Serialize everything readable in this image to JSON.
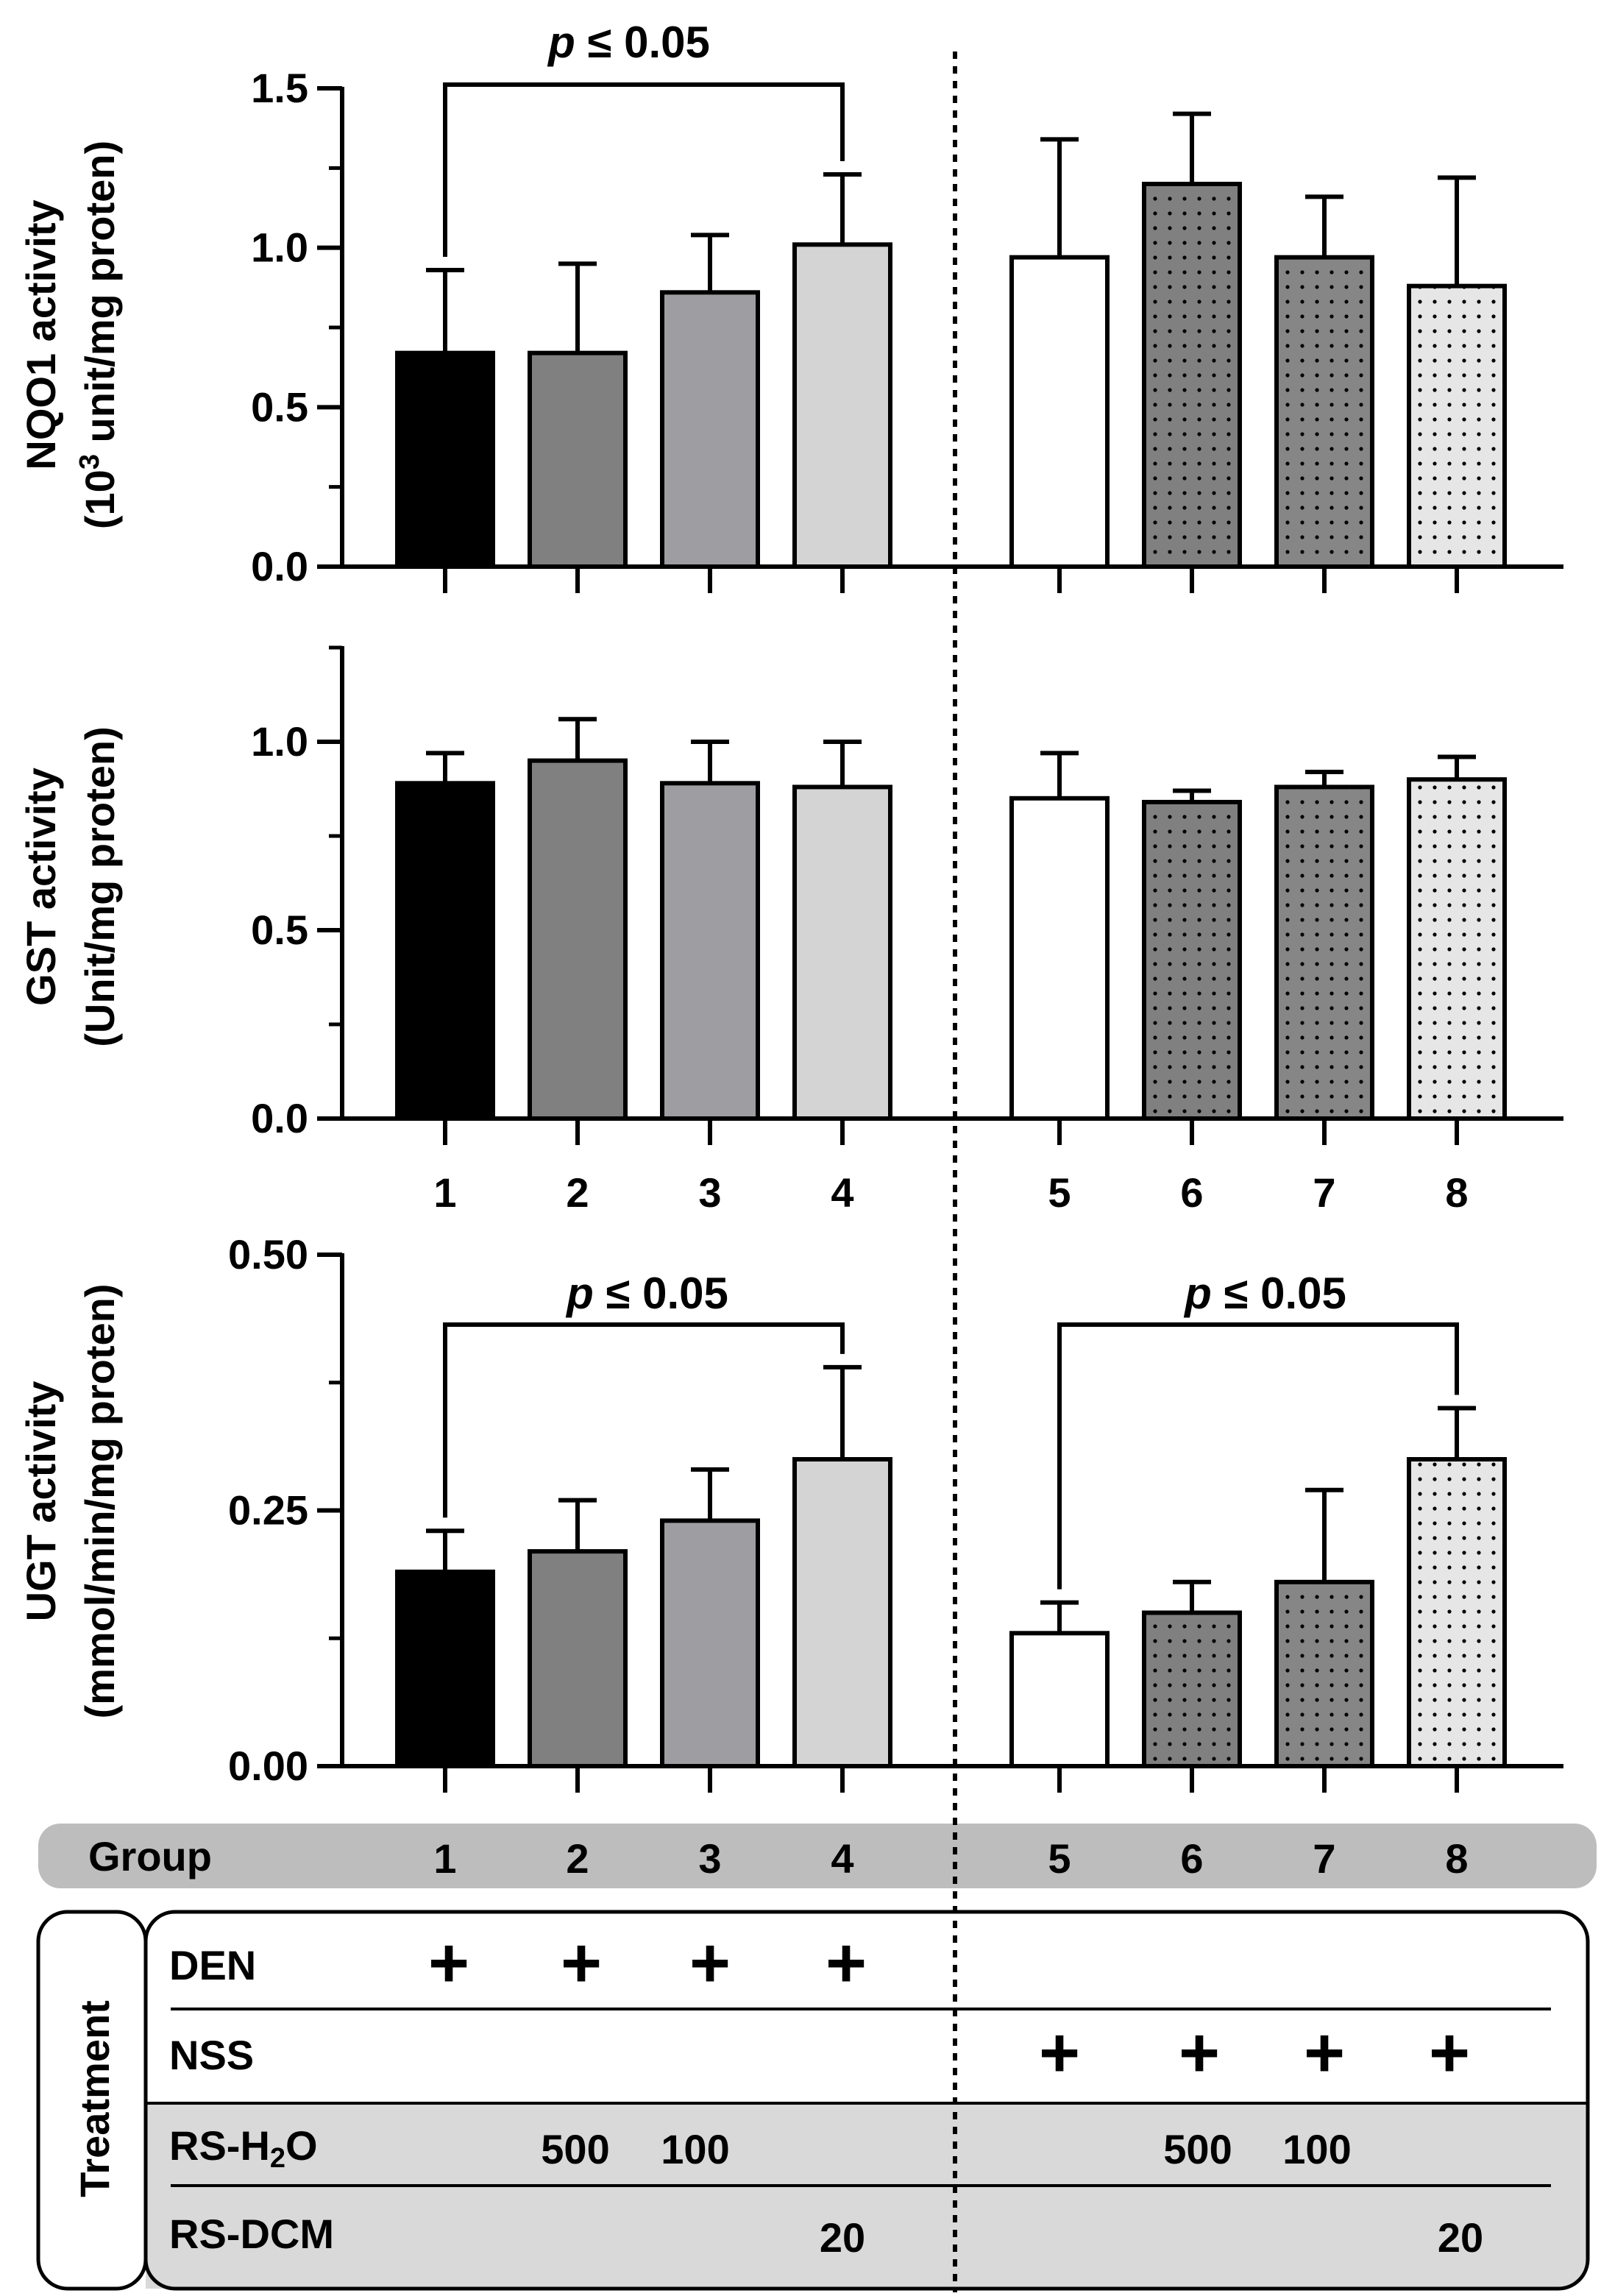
{
  "chart_data": [
    {
      "type": "bar",
      "panel": "top",
      "ylabel_line1": "NQO1 activity",
      "ylabel_line2": "(10",
      "ylabel_sup": "3",
      "ylabel_line2b": " unit/mg proten)",
      "ylim": [
        0,
        1.5
      ],
      "yticks": [
        0.0,
        0.5,
        1.0,
        1.5
      ],
      "ytick_labels": [
        "0.0",
        "0.5",
        "1.0",
        "1.5"
      ],
      "categories": [
        "1",
        "2",
        "3",
        "4",
        "5",
        "6",
        "7",
        "8"
      ],
      "values": [
        0.67,
        0.67,
        0.86,
        1.01,
        0.97,
        1.2,
        0.97,
        0.88
      ],
      "errors": [
        0.26,
        0.28,
        0.18,
        0.22,
        0.37,
        0.22,
        0.19,
        0.34
      ],
      "significance": [
        {
          "from": 1,
          "to": 4,
          "label_p": "p",
          "label_rest": "≤ 0.05"
        }
      ]
    },
    {
      "type": "bar",
      "panel": "middle",
      "ylabel_line1": "GST activity",
      "ylabel_line2": "(Unit/mg proten)",
      "ylim": [
        0,
        1.25
      ],
      "yticks": [
        0.0,
        0.5,
        1.0
      ],
      "ytick_labels": [
        "0.0",
        "0.5",
        "1.0"
      ],
      "categories": [
        "1",
        "2",
        "3",
        "4",
        "5",
        "6",
        "7",
        "8"
      ],
      "values": [
        0.89,
        0.95,
        0.89,
        0.88,
        0.85,
        0.84,
        0.88,
        0.9
      ],
      "errors": [
        0.08,
        0.11,
        0.11,
        0.12,
        0.12,
        0.03,
        0.04,
        0.06
      ],
      "significance": []
    },
    {
      "type": "bar",
      "panel": "bottom",
      "ylabel_line1": "UGT activity",
      "ylabel_line2": "(mmol/min/mg proten)",
      "ylim": [
        0,
        0.5
      ],
      "yticks": [
        0.0,
        0.25,
        0.5
      ],
      "ytick_labels": [
        "0.00",
        "0.25",
        "0.50"
      ],
      "categories": [
        "1",
        "2",
        "3",
        "4",
        "5",
        "6",
        "7",
        "8"
      ],
      "values": [
        0.19,
        0.21,
        0.24,
        0.3,
        0.13,
        0.15,
        0.18,
        0.3
      ],
      "errors": [
        0.04,
        0.05,
        0.05,
        0.09,
        0.03,
        0.03,
        0.09,
        0.05
      ],
      "significance": [
        {
          "from": 1,
          "to": 4,
          "label_p": "p",
          "label_rest": "≤ 0.05"
        },
        {
          "from": 5,
          "to": 8,
          "label_p": "p",
          "label_rest": "≤ 0.05"
        }
      ]
    }
  ],
  "bar_styles": [
    {
      "fill": "#000000",
      "dots": false
    },
    {
      "fill": "#808080",
      "dots": false
    },
    {
      "fill": "#9e9ea2",
      "dots": false
    },
    {
      "fill": "#d4d4d4",
      "dots": false
    },
    {
      "fill": "#ffffff",
      "dots": false
    },
    {
      "fill": "#808080",
      "dots": true
    },
    {
      "fill": "#868686",
      "dots": true
    },
    {
      "fill": "#e6e6e6",
      "dots": true
    }
  ],
  "colors": {
    "axis": "#000000",
    "group_band": "#bdbdbd",
    "table_band": "#d9d9d9"
  },
  "middle_group_labels": [
    "1",
    "2",
    "3",
    "4",
    "5",
    "6",
    "7",
    "8"
  ],
  "table": {
    "group_label": "Group",
    "groups": [
      "1",
      "2",
      "3",
      "4",
      "5",
      "6",
      "7",
      "8"
    ],
    "treatment_label": "Treatment",
    "rows": [
      {
        "label": "DEN",
        "cells": [
          "+",
          "+",
          "+",
          "+",
          "",
          "",
          "",
          ""
        ]
      },
      {
        "label": "NSS",
        "cells": [
          "",
          "",
          "",
          "",
          "+",
          "+",
          "+",
          "+"
        ]
      },
      {
        "label_main": "RS-H",
        "label_sub": "2",
        "label_end": "O",
        "cells": [
          "",
          "500",
          "100",
          "",
          "",
          "500",
          "100",
          ""
        ]
      },
      {
        "label": "RS-DCM",
        "cells": [
          "",
          "",
          "",
          "20",
          "",
          "",
          "",
          "20"
        ]
      }
    ]
  }
}
